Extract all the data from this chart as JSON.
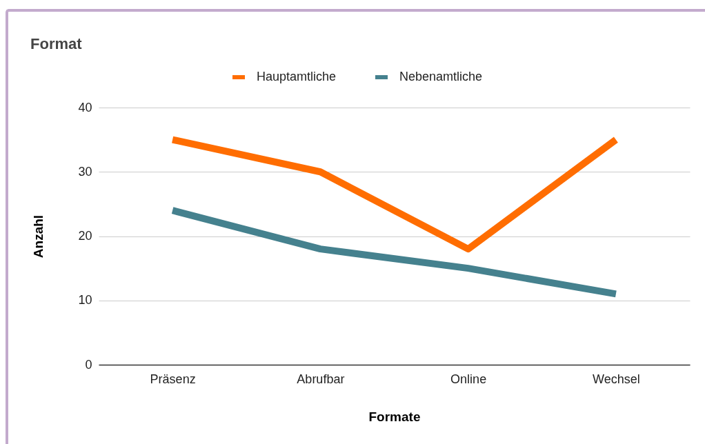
{
  "chart_data": {
    "type": "line",
    "title": "Format",
    "xlabel": "Formate",
    "ylabel": "Anzahl",
    "categories": [
      "Präsenz",
      "Abrufbar",
      "Online",
      "Wechsel"
    ],
    "series": [
      {
        "name": "Hauptamtliche",
        "color": "#ff6d01",
        "values": [
          35,
          30,
          18,
          35
        ]
      },
      {
        "name": "Nebenamtliche",
        "color": "#45818e",
        "values": [
          24,
          18,
          15,
          11
        ]
      }
    ],
    "ylim": [
      0,
      40
    ],
    "yticks": [
      0,
      10,
      20,
      30,
      40
    ],
    "grid": "y",
    "legend": "top"
  }
}
